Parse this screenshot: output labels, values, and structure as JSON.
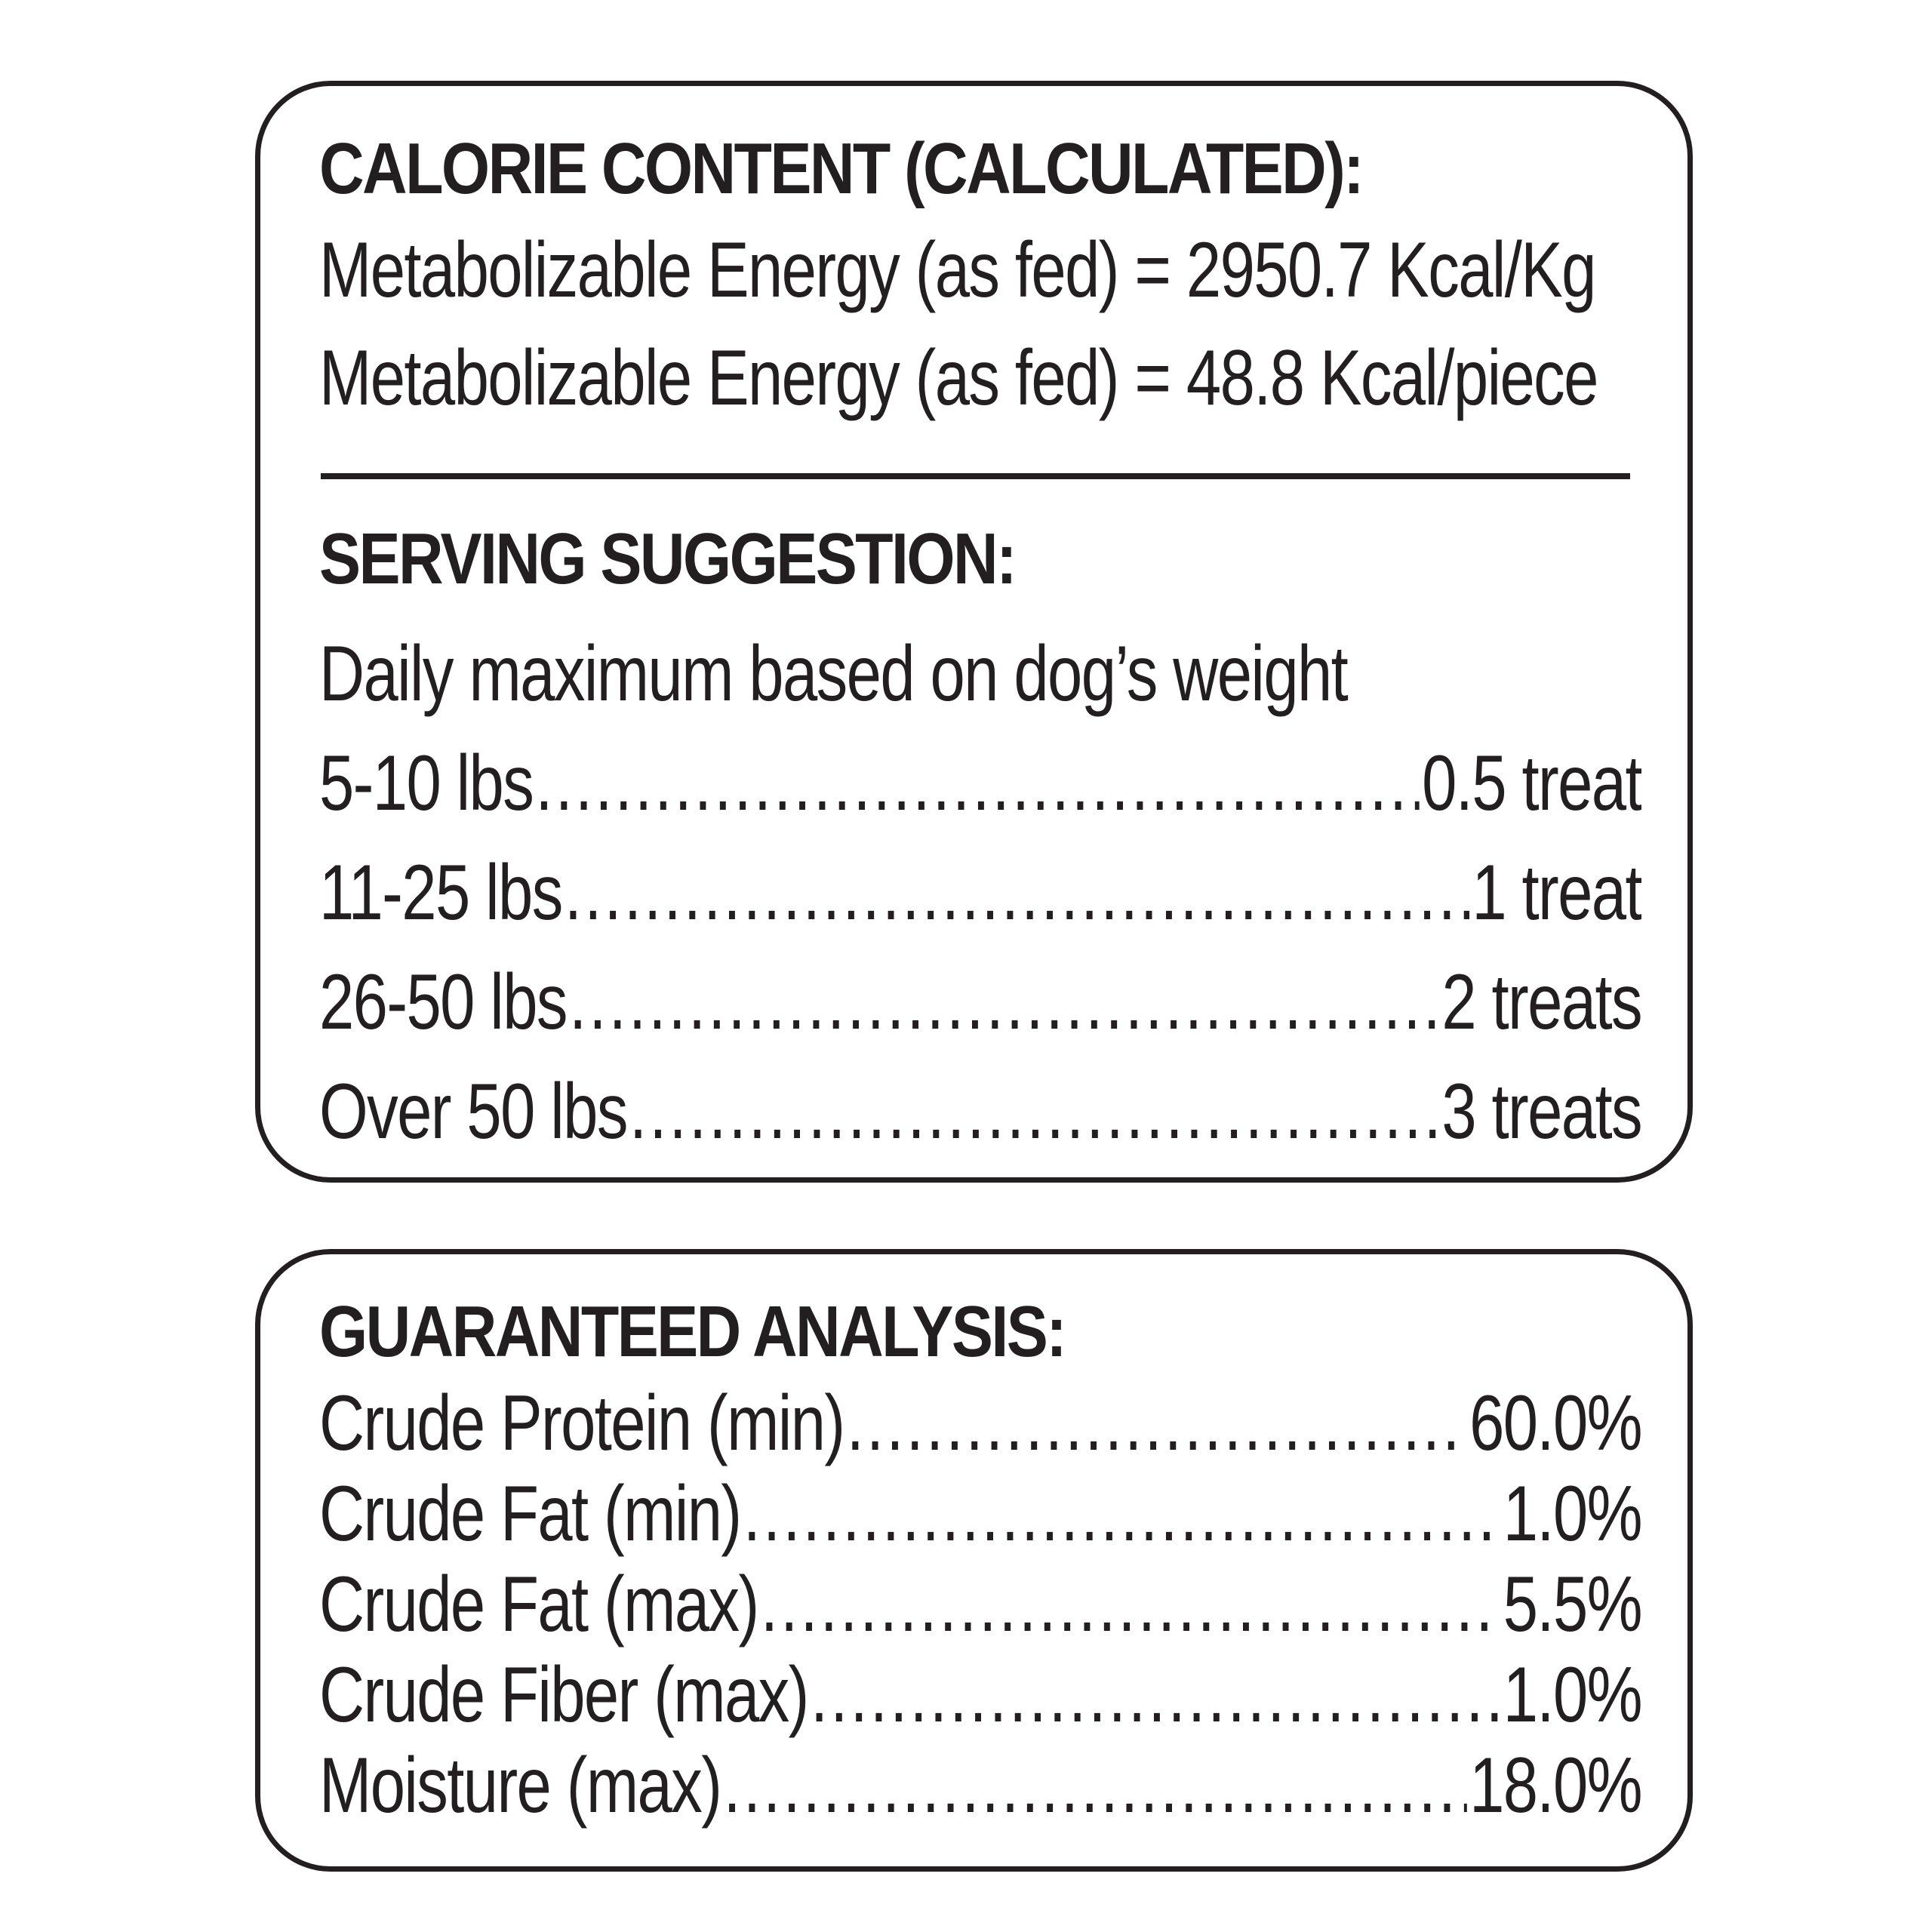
{
  "calorie": {
    "heading": "CALORIE CONTENT (CALCULATED):",
    "line1": "Metabolizable Energy (as fed) = 2950.7 Kcal/Kg",
    "line2": "Metabolizable Energy (as fed) = 48.8 Kcal/piece"
  },
  "serving": {
    "heading": "SERVING SUGGESTION:",
    "subtitle": "Daily maximum based on dog’s weight",
    "rows": [
      {
        "label": "5-10 lbs",
        "value": "0.5 treat"
      },
      {
        "label": "11-25 lbs",
        "value": "1 treat"
      },
      {
        "label": "26-50 lbs",
        "value": "2 treats"
      },
      {
        "label": "Over 50 lbs",
        "value": "3 treats"
      }
    ]
  },
  "analysis": {
    "heading": "GUARANTEED ANALYSIS:",
    "rows": [
      {
        "label": "Crude Protein (min)",
        "value": "60.0%"
      },
      {
        "label": "Crude Fat (min)",
        "value": "1.0%"
      },
      {
        "label": "Crude Fat (max)",
        "value": "5.5%"
      },
      {
        "label": "Crude Fiber (max)",
        "value": "1.0%"
      },
      {
        "label": "Moisture (max)",
        "value": "18.0%"
      }
    ]
  }
}
